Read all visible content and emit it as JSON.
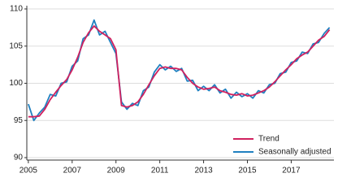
{
  "chart_data": {
    "type": "line",
    "x": [
      2005,
      2005.25,
      2005.5,
      2005.75,
      2006,
      2006.25,
      2006.5,
      2006.75,
      2007,
      2007.25,
      2007.5,
      2007.75,
      2008,
      2008.25,
      2008.5,
      2008.75,
      2009,
      2009.25,
      2009.5,
      2009.75,
      2010,
      2010.25,
      2010.5,
      2010.75,
      2011,
      2011.25,
      2011.5,
      2011.75,
      2012,
      2012.25,
      2012.5,
      2012.75,
      2013,
      2013.25,
      2013.5,
      2013.75,
      2014,
      2014.25,
      2014.5,
      2014.75,
      2015,
      2015.25,
      2015.5,
      2015.75,
      2016,
      2016.25,
      2016.5,
      2016.75,
      2017,
      2017.25,
      2017.5,
      2017.75,
      2018,
      2018.25,
      2018.5,
      2018.75
    ],
    "series": [
      {
        "name": "Seasonally adjusted",
        "color": "#1f80c0",
        "values": [
          97.2,
          95,
          96,
          96.8,
          98.5,
          98.3,
          100,
          100.2,
          102.3,
          103,
          106,
          106.5,
          108.5,
          106.5,
          107,
          105.5,
          104,
          97.5,
          96.5,
          97.3,
          97,
          99,
          99.5,
          101.5,
          102.5,
          101.8,
          102.3,
          101.6,
          102,
          100.3,
          100.4,
          99,
          99.6,
          99,
          99.8,
          98.7,
          99.2,
          98,
          98.8,
          98.2,
          98.6,
          98,
          99,
          98.7,
          99.8,
          100,
          101.3,
          101.5,
          102.8,
          103,
          104.2,
          104,
          105.3,
          105.5,
          106.7,
          107.5
        ]
      },
      {
        "name": "Trend",
        "color": "#d0215f",
        "values": [
          95.5,
          95.5,
          95.6,
          96.5,
          97.8,
          98.8,
          99.7,
          100.5,
          101.8,
          103.5,
          105.5,
          106.8,
          107.7,
          107,
          106.5,
          106,
          104.5,
          97,
          96.8,
          97,
          97.5,
          98.5,
          99.8,
          101,
          102,
          102.2,
          102,
          102,
          101.8,
          100.8,
          100,
          99.5,
          99.2,
          99.3,
          99.5,
          99,
          98.8,
          98.5,
          98.4,
          98.6,
          98.3,
          98.4,
          98.7,
          99,
          99.5,
          100.2,
          101,
          101.8,
          102.5,
          103.3,
          103.8,
          104.2,
          105,
          105.8,
          106.3,
          107.2
        ]
      }
    ],
    "xlim": [
      2004.93,
      2018.95
    ],
    "xticks": [
      2005,
      2007,
      2009,
      2011,
      2013,
      2015,
      2017
    ],
    "ylim": [
      90,
      110
    ],
    "yticks": [
      90,
      95,
      100,
      105,
      110
    ],
    "grid": true
  }
}
